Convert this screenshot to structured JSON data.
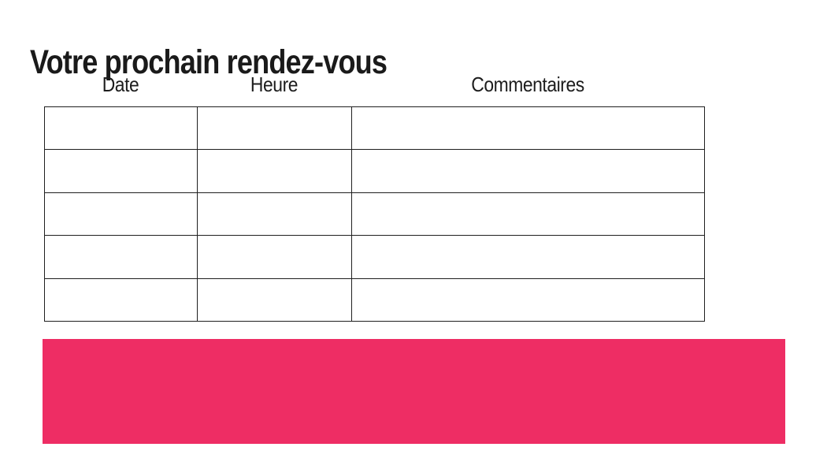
{
  "page": {
    "title": "Votre prochain rendez-vous",
    "background_color": "#ffffff"
  },
  "table": {
    "headers": [
      "Date",
      "Heure",
      "Commentaires"
    ],
    "row_count": 5,
    "column_count": 3,
    "rows": [
      [
        "",
        "",
        ""
      ],
      [
        "",
        "",
        ""
      ],
      [
        "",
        "",
        ""
      ],
      [
        "",
        "",
        ""
      ],
      [
        "",
        "",
        ""
      ]
    ],
    "border_color": "#1f1f1f",
    "text_color": "#1d1d1d"
  },
  "highlight_bar": {
    "color": "#ee2d64"
  }
}
